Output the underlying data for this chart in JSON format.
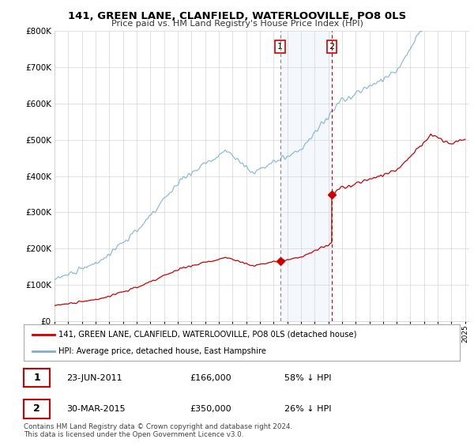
{
  "title": "141, GREEN LANE, CLANFIELD, WATERLOOVILLE, PO8 0LS",
  "subtitle": "Price paid vs. HM Land Registry's House Price Index (HPI)",
  "legend_entry1": "141, GREEN LANE, CLANFIELD, WATERLOOVILLE, PO8 0LS (detached house)",
  "legend_entry2": "HPI: Average price, detached house, East Hampshire",
  "transaction1_label": "1",
  "transaction1_date": "23-JUN-2011",
  "transaction1_price": "£166,000",
  "transaction1_hpi": "58% ↓ HPI",
  "transaction1_year": 2011.48,
  "transaction1_value": 166000,
  "transaction2_label": "2",
  "transaction2_date": "30-MAR-2015",
  "transaction2_price": "£350,000",
  "transaction2_hpi": "26% ↓ HPI",
  "transaction2_year": 2015.25,
  "transaction2_value": 350000,
  "hpi_color": "#7bafd4",
  "price_color": "#cc0000",
  "vline1_color": "#999999",
  "vline1_style": "dashed",
  "vline2_color": "#cc0000",
  "vline2_style": "dashed",
  "highlight_color": "#ddeeff",
  "ylim_max": 800000,
  "ylim_min": 0,
  "xmin": 1995,
  "xmax": 2025,
  "footer": "Contains HM Land Registry data © Crown copyright and database right 2024.\nThis data is licensed under the Open Government Licence v3.0.",
  "background_color": "#ffffff",
  "grid_color": "#cccccc"
}
